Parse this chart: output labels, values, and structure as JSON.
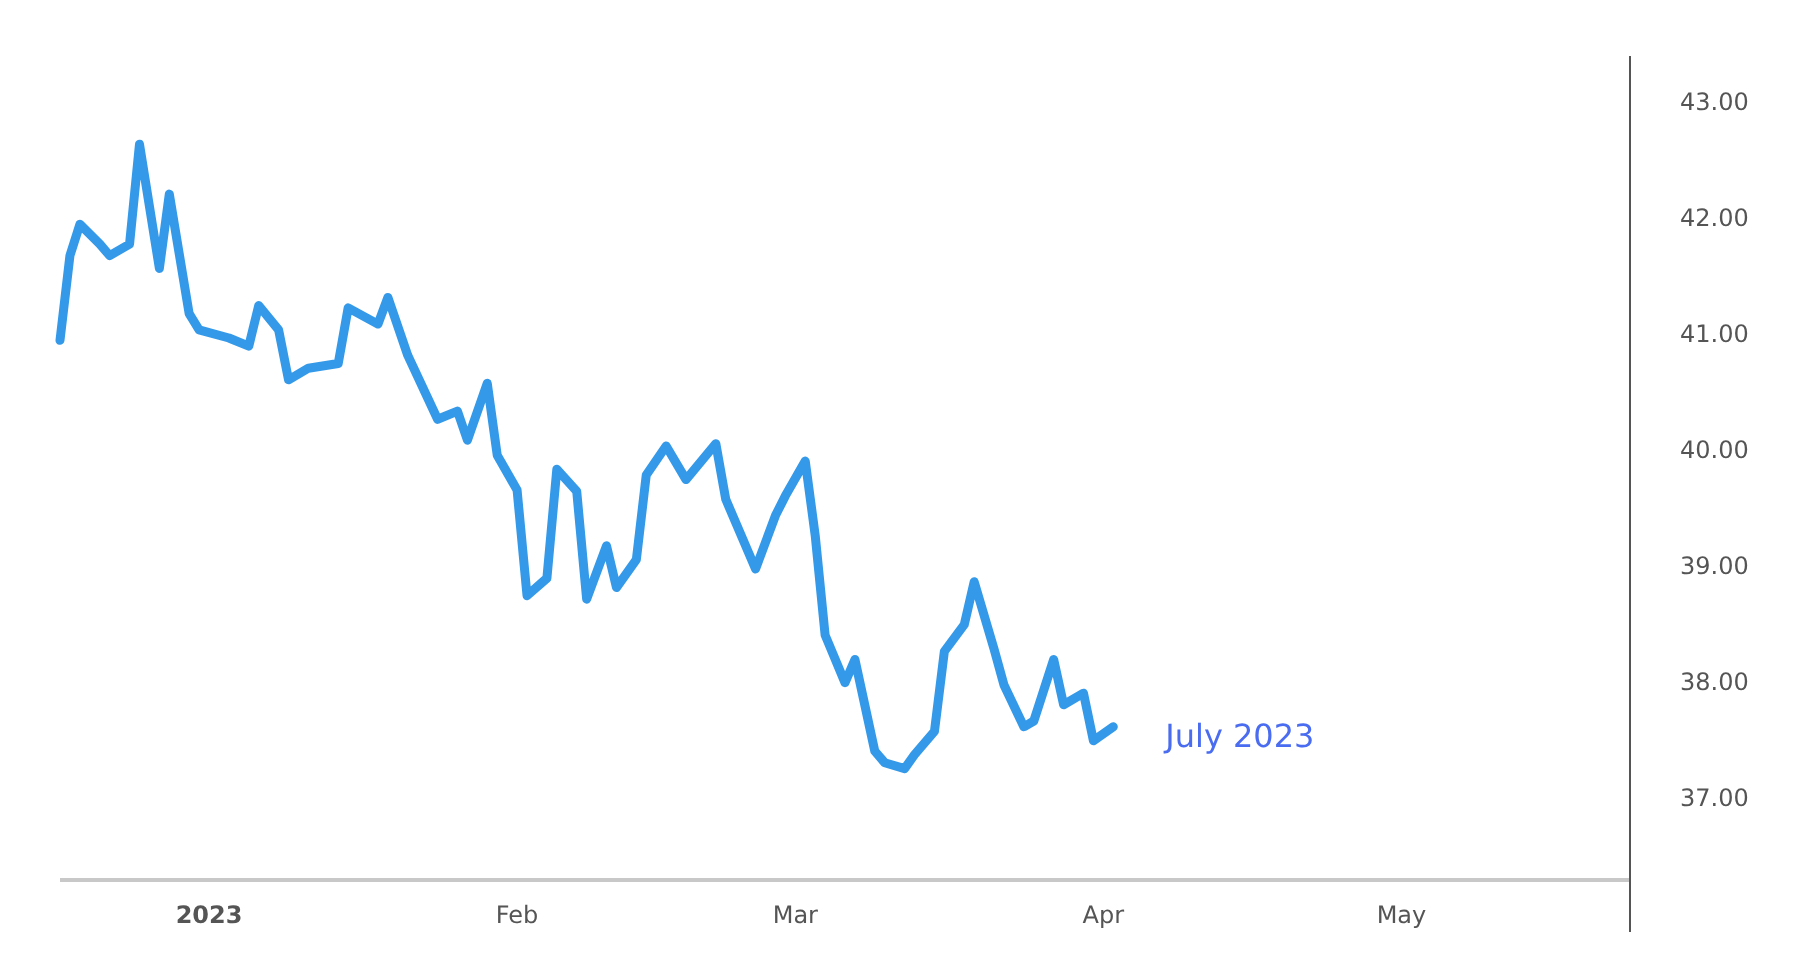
{
  "chart_data": {
    "type": "line",
    "x": [
      "2022-12-17",
      "2022-12-18",
      "2022-12-19",
      "2022-12-21",
      "2022-12-22",
      "2022-12-24",
      "2022-12-25",
      "2022-12-27",
      "2022-12-28",
      "2022-12-30",
      "2022-12-31",
      "2023-01-03",
      "2023-01-05",
      "2023-01-06",
      "2023-01-08",
      "2023-01-09",
      "2023-01-11",
      "2023-01-14",
      "2023-01-15",
      "2023-01-18",
      "2023-01-19",
      "2023-01-21",
      "2023-01-24",
      "2023-01-26",
      "2023-01-27",
      "2023-01-29",
      "2023-01-30",
      "2023-02-01",
      "2023-02-02",
      "2023-02-04",
      "2023-02-05",
      "2023-02-07",
      "2023-02-08",
      "2023-02-10",
      "2023-02-11",
      "2023-02-13",
      "2023-02-14",
      "2023-02-16",
      "2023-02-18",
      "2023-02-21",
      "2023-02-22",
      "2023-02-25",
      "2023-02-27",
      "2023-02-28",
      "2023-03-02",
      "2023-03-03",
      "2023-03-04",
      "2023-03-06",
      "2023-03-07",
      "2023-03-09",
      "2023-03-10",
      "2023-03-12",
      "2023-03-13",
      "2023-03-15",
      "2023-03-16",
      "2023-03-18",
      "2023-03-19",
      "2023-03-21",
      "2023-03-22",
      "2023-03-24",
      "2023-03-25",
      "2023-03-27",
      "2023-03-28",
      "2023-03-30",
      "2023-03-31",
      "2023-04-02"
    ],
    "series": [
      {
        "name": "July 2023",
        "color": "#3499e8",
        "values": [
          40.95,
          41.68,
          41.95,
          41.78,
          41.68,
          41.78,
          42.64,
          41.57,
          42.21,
          41.18,
          41.04,
          40.97,
          40.9,
          41.25,
          41.04,
          40.61,
          40.71,
          40.75,
          41.23,
          41.09,
          41.32,
          40.82,
          40.27,
          40.34,
          40.09,
          40.58,
          39.96,
          39.66,
          38.75,
          38.9,
          39.84,
          39.65,
          38.72,
          39.18,
          38.82,
          39.06,
          39.79,
          40.04,
          39.75,
          40.06,
          39.58,
          38.98,
          39.44,
          39.61,
          39.91,
          39.27,
          38.41,
          38.0,
          38.2,
          37.41,
          37.31,
          37.26,
          37.38,
          37.58,
          38.27,
          38.5,
          38.87,
          38.29,
          37.98,
          37.62,
          37.67,
          38.2,
          37.81,
          37.91,
          37.5,
          37.62
        ]
      }
    ],
    "xlim": [
      "2022-12-17",
      "2023-05-24"
    ],
    "xticks": [
      {
        "value": "2023-01-01",
        "label": "2023"
      },
      {
        "value": "2023-02-01",
        "label": "Feb"
      },
      {
        "value": "2023-03-01",
        "label": "Mar"
      },
      {
        "value": "2023-04-01",
        "label": "Apr"
      },
      {
        "value": "2023-05-01",
        "label": "May"
      }
    ],
    "ylim": [
      36.3,
      43.4
    ],
    "yticks": [
      {
        "value": 37,
        "label": "37.00"
      },
      {
        "value": 38,
        "label": "38.00"
      },
      {
        "value": 39,
        "label": "39.00"
      },
      {
        "value": 40,
        "label": "40.00"
      },
      {
        "value": 41,
        "label": "41.00"
      },
      {
        "value": 42,
        "label": "42.00"
      },
      {
        "value": 43,
        "label": "43.00"
      }
    ],
    "grid": false,
    "legend": false,
    "marker": "none",
    "line_style": "solid"
  }
}
